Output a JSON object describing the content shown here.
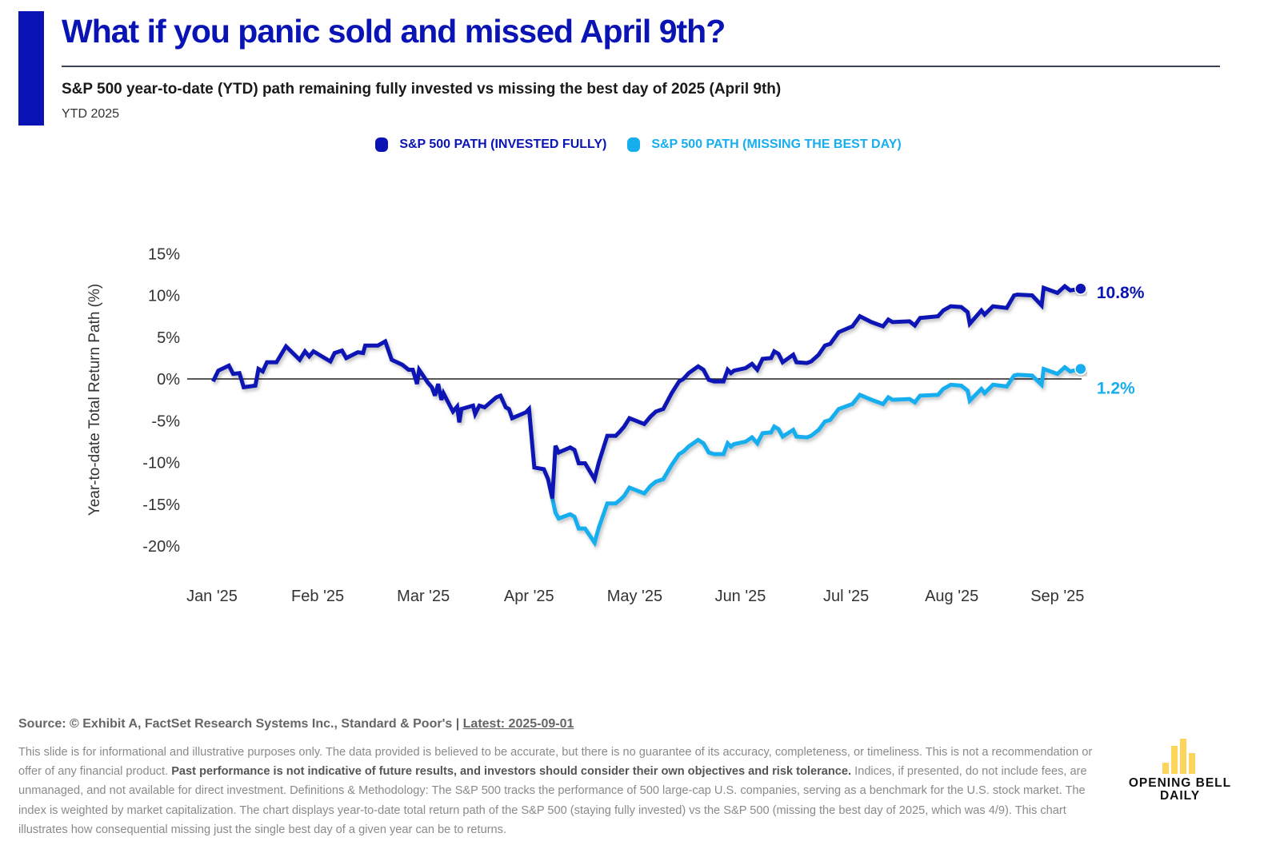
{
  "header": {
    "title": "What if you panic sold and missed April 9th?",
    "subtitle": "S&P 500 year-to-date (YTD) path remaining fully invested vs missing the best day of 2025 (April 9th)",
    "period": "YTD 2025",
    "accent_color": "#0a14b4"
  },
  "legend": [
    {
      "label": "S&P 500 PATH (INVESTED FULLY)",
      "color": "#0a14b4"
    },
    {
      "label": "S&P 500 PATH (MISSING THE BEST DAY)",
      "color": "#17aeee"
    }
  ],
  "chart_data": {
    "type": "line",
    "title": "S&P 500 year-to-date (YTD) path remaining fully invested vs missing the best day of 2025 (April 9th)",
    "xlabel": "",
    "ylabel": "Year-to-date Total Return Path (%)",
    "x_unit": "months since Jan 1, 2025",
    "x_ticks": [
      0,
      1,
      2,
      3,
      4,
      5,
      6,
      7,
      8
    ],
    "x_tick_labels": [
      "Jan '25",
      "Feb '25",
      "Mar '25",
      "Apr '25",
      "May '25",
      "Jun '25",
      "Jul '25",
      "Aug '25",
      "Sep '25"
    ],
    "y_ticks": [
      15,
      10,
      5,
      0,
      -5,
      -10,
      -15,
      -20
    ],
    "y_tick_labels": [
      "15%",
      "10%",
      "5%",
      "0%",
      "-5%",
      "-10%",
      "-15%",
      "-20%"
    ],
    "xlim": [
      0,
      8.2
    ],
    "ylim": [
      -20,
      15
    ],
    "zero_line": true,
    "grid": false,
    "legend_position": "top-center",
    "x": [
      0.01,
      0.06,
      0.16,
      0.2,
      0.26,
      0.3,
      0.41,
      0.44,
      0.48,
      0.52,
      0.61,
      0.7,
      0.83,
      0.88,
      0.92,
      0.96,
      1.12,
      1.16,
      1.23,
      1.27,
      1.38,
      1.43,
      1.45,
      1.57,
      1.64,
      1.7,
      1.8,
      1.86,
      1.9,
      1.94,
      1.96,
      2.04,
      2.08,
      2.11,
      2.14,
      2.17,
      2.19,
      2.28,
      2.32,
      2.34,
      2.36,
      2.47,
      2.49,
      2.53,
      2.58,
      2.69,
      2.73,
      2.78,
      2.81,
      2.84,
      2.97,
      3.0,
      3.05,
      3.14,
      3.18,
      3.22,
      3.25,
      3.28,
      3.39,
      3.43,
      3.47,
      3.53,
      3.62,
      3.66,
      3.74,
      3.82,
      3.86,
      3.9,
      3.95,
      4.09,
      4.15,
      4.2,
      4.27,
      4.35,
      4.42,
      4.46,
      4.51,
      4.6,
      4.65,
      4.7,
      4.75,
      4.84,
      4.88,
      4.91,
      4.94,
      5.05,
      5.11,
      5.16,
      5.21,
      5.29,
      5.32,
      5.36,
      5.4,
      5.5,
      5.53,
      5.63,
      5.67,
      5.74,
      5.8,
      5.85,
      5.93,
      6.06,
      6.13,
      6.24,
      6.35,
      6.4,
      6.44,
      6.6,
      6.65,
      6.7,
      6.87,
      6.92,
      6.99,
      7.09,
      7.15,
      7.17,
      7.28,
      7.31,
      7.39,
      7.52,
      7.59,
      7.62,
      7.76,
      7.85,
      7.87,
      8.0,
      8.07,
      8.12,
      8.22
    ],
    "series": [
      {
        "name": "S&P 500 PATH (INVESTED FULLY)",
        "color": "#0a14b4",
        "end_label": "10.8%",
        "values": [
          -0.3,
          1.0,
          1.6,
          0.6,
          0.7,
          -1.0,
          -0.8,
          1.2,
          0.9,
          2.0,
          2.0,
          3.9,
          2.3,
          3.3,
          2.7,
          3.3,
          2.1,
          3.1,
          3.4,
          2.5,
          3.2,
          3.1,
          4.0,
          4.0,
          4.5,
          2.3,
          1.7,
          1.1,
          1.1,
          -0.6,
          1.1,
          -0.4,
          -1.0,
          -2.0,
          -0.6,
          -2.5,
          -1.7,
          -3.9,
          -3.3,
          -5.2,
          -3.6,
          -3.2,
          -4.2,
          -3.2,
          -3.4,
          -2.2,
          -2.0,
          -3.4,
          -3.6,
          -4.7,
          -4.0,
          -3.6,
          -10.6,
          -10.8,
          -12.0,
          -14.3,
          -8.0,
          -8.8,
          -8.2,
          -8.5,
          -10.1,
          -10.1,
          -12.0,
          -10.0,
          -6.8,
          -6.8,
          -6.3,
          -5.7,
          -4.7,
          -5.4,
          -4.5,
          -3.9,
          -3.6,
          -1.7,
          -0.3,
          0.0,
          0.7,
          1.5,
          1.1,
          -0.1,
          -0.3,
          -0.3,
          1.1,
          0.7,
          1.0,
          1.3,
          1.8,
          1.1,
          2.4,
          2.5,
          3.3,
          3.0,
          2.0,
          2.9,
          2.0,
          1.9,
          2.1,
          2.9,
          4.0,
          4.2,
          5.6,
          6.3,
          7.5,
          6.8,
          6.3,
          7.1,
          6.8,
          6.9,
          6.4,
          7.3,
          7.5,
          8.2,
          8.7,
          8.6,
          8.0,
          6.6,
          8.2,
          7.7,
          8.7,
          8.5,
          10.0,
          10.1,
          10.0,
          8.8,
          10.9,
          10.3,
          11.1,
          10.6,
          10.8
        ]
      },
      {
        "name": "S&P 500 PATH (MISSING THE BEST DAY)",
        "color": "#17aeee",
        "end_label": "1.2%",
        "start_index": 55,
        "values": [
          -14.3,
          -16.0,
          -16.7,
          -16.2,
          -16.5,
          -17.9,
          -17.9,
          -19.6,
          -17.8,
          -14.9,
          -14.9,
          -14.5,
          -14.0,
          -13.0,
          -13.7,
          -12.8,
          -12.3,
          -12.0,
          -10.3,
          -9.0,
          -8.7,
          -8.1,
          -7.3,
          -7.7,
          -8.8,
          -9.0,
          -9.0,
          -7.7,
          -8.1,
          -7.8,
          -7.5,
          -7.0,
          -7.7,
          -6.5,
          -6.4,
          -5.7,
          -6.0,
          -6.9,
          -6.1,
          -6.9,
          -7.0,
          -6.8,
          -6.1,
          -5.1,
          -4.9,
          -3.6,
          -3.0,
          -1.9,
          -2.5,
          -3.0,
          -2.2,
          -2.5,
          -2.4,
          -2.8,
          -2.0,
          -1.9,
          -1.2,
          -0.7,
          -0.8,
          -1.4,
          -2.6,
          -1.2,
          -1.7,
          -0.7,
          -0.9,
          0.4,
          0.5,
          0.4,
          -0.7,
          1.2,
          0.6,
          1.4,
          0.9,
          1.2
        ]
      }
    ]
  },
  "footer": {
    "source_prefix": "Source: © Exhibit A, FactSet Research Systems Inc., Standard & Poor's | ",
    "latest": "Latest: 2025-09-01",
    "disclaimer_1": "This slide is for informational and illustrative purposes only. The data provided is believed to be accurate, but there is no guarantee of its accuracy, completeness, or timeliness. This is not a recommendation or offer of any financial product. ",
    "disclaimer_bold": "Past performance is not indicative of future results, and investors should consider their own objectives and risk tolerance.",
    "disclaimer_2": " Indices, if presented, do not include fees, are unmanaged, and not available for direct investment. Definitions & Methodology: The S&P 500 tracks the performance of 500 large-cap U.S. companies, serving as a benchmark for the U.S. stock market. The index is weighted by market capitalization. The chart displays year-to-date total return path of the S&P 500 (staying fully invested) vs the S&P 500 (missing the best day of 2025, which was 4/9). This chart illustrates how consequential missing just the single best day of a given year can be to returns."
  },
  "logo": {
    "line1": "OPENING BELL",
    "line2": "DAILY",
    "color": "#fdd55b"
  }
}
